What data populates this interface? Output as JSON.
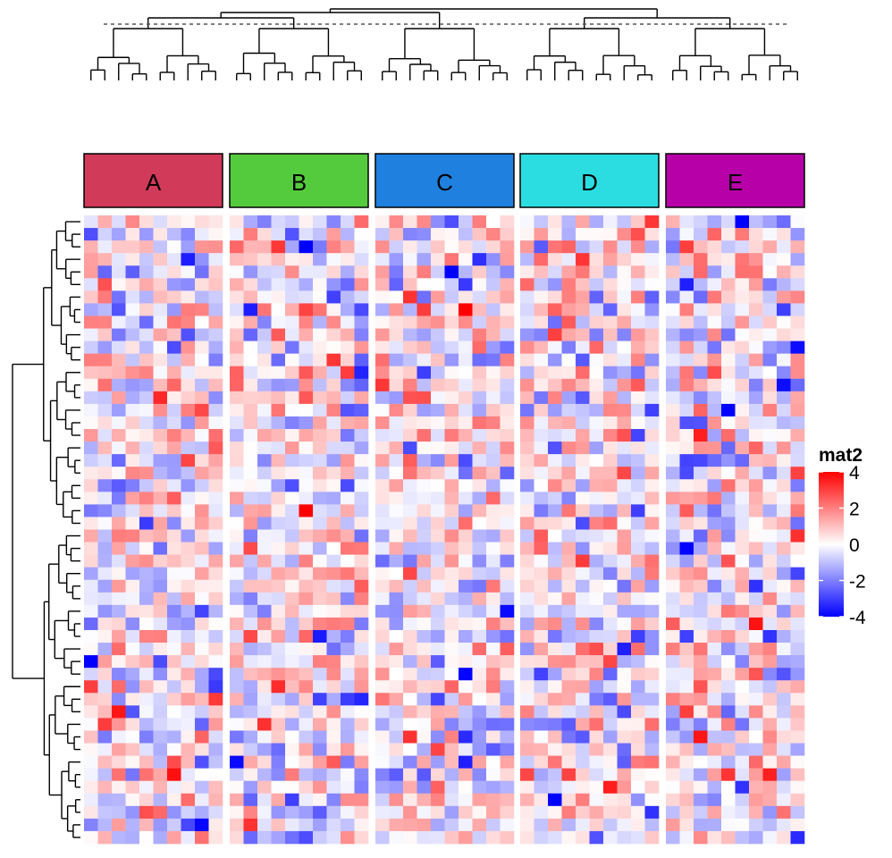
{
  "chart_data": {
    "type": "heatmap",
    "rows": 50,
    "column_splits": [
      {
        "label": "A",
        "color": "#d23a5a",
        "columns": 10
      },
      {
        "label": "B",
        "color": "#54cb3d",
        "columns": 10
      },
      {
        "label": "C",
        "color": "#2080e0",
        "columns": 10
      },
      {
        "label": "D",
        "color": "#2bdde0",
        "columns": 10
      },
      {
        "label": "E",
        "color": "#b700a7",
        "columns": 10
      }
    ],
    "color_scale": {
      "min": -4,
      "max": 4,
      "colors": [
        "#0000ff",
        "#ffffff",
        "#ff0000"
      ]
    },
    "legend": {
      "title": "mat2",
      "ticks": [
        4,
        2,
        0,
        -2,
        -4
      ],
      "tick_labels": [
        "4",
        "2",
        "0",
        "-2",
        "-4"
      ],
      "placement": "right"
    },
    "row_dendrogram": true,
    "column_dendrogram": true,
    "column_cut_line": true
  }
}
